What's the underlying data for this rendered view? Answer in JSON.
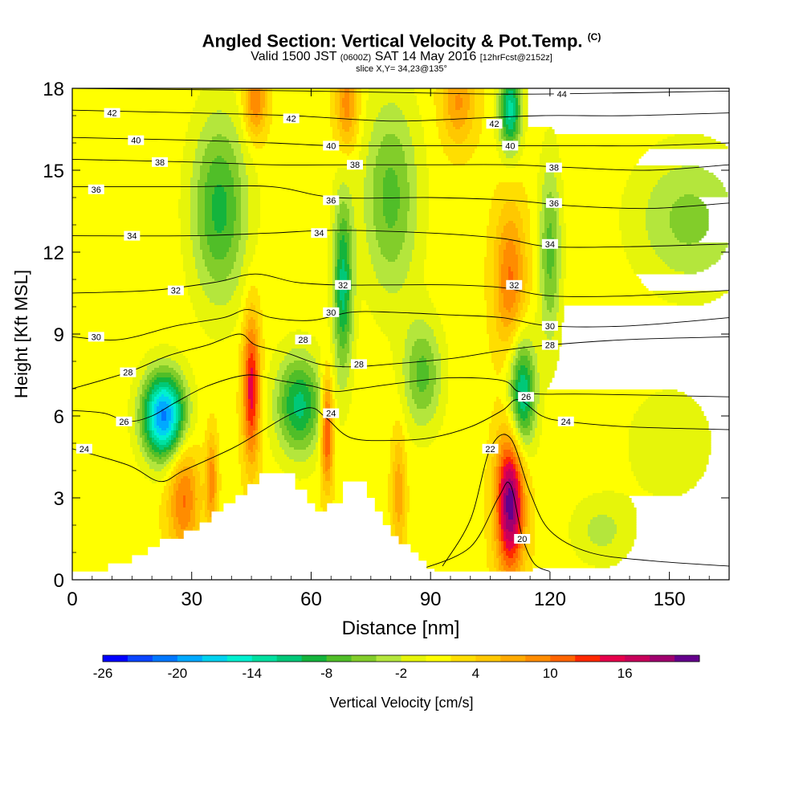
{
  "title": {
    "main": "Angled Section: Vertical Velocity & Pot.Temp.",
    "copyright": "(C)",
    "valid_prefix": "Valid 1500 JST",
    "valid_utc": "(0600Z)",
    "valid_date": "SAT 14 May 2016",
    "forecast": "[12hrFcst@2152z]",
    "slice": "slice X,Y= 34,23@135°"
  },
  "chart_data": {
    "type": "heatmap",
    "xlabel": "Distance [nm]",
    "ylabel": "Height [Kft MSL]",
    "xlim": [
      0,
      165
    ],
    "ylim": [
      0,
      18
    ],
    "x_ticks": [
      0,
      30,
      60,
      90,
      120,
      150
    ],
    "y_ticks": [
      0,
      3,
      6,
      9,
      12,
      15,
      18
    ],
    "colorbar": {
      "label": "Vertical Velocity [cm/s]",
      "tick_labels": [
        "-26",
        "-20",
        "-14",
        "-8",
        "-2",
        "4",
        "10",
        "16"
      ],
      "tick_values": [
        -26,
        -20,
        -14,
        -8,
        -2,
        4,
        10,
        16
      ],
      "levels": [
        -26,
        -24,
        -22,
        -20,
        -18,
        -16,
        -14,
        -12,
        -10,
        -8,
        -6,
        -4,
        -2,
        0,
        2,
        4,
        6,
        8,
        10,
        12,
        14,
        16,
        18,
        20
      ],
      "colors": [
        "#0000ff",
        "#0a45ff",
        "#0077ff",
        "#00a9ff",
        "#00d2f0",
        "#00f0d0",
        "#00e0a0",
        "#00c878",
        "#14b43c",
        "#50be28",
        "#82cd2a",
        "#b4e63c",
        "#e6f50a",
        "#ffff00",
        "#ffde00",
        "#ffc800",
        "#ffaa00",
        "#ff8c00",
        "#ff6400",
        "#ff2800",
        "#e6004b",
        "#c8005a",
        "#a0006e",
        "#64008c"
      ]
    },
    "terrain": [
      [
        0,
        0.3
      ],
      [
        8,
        0.3
      ],
      [
        9,
        0.6
      ],
      [
        14,
        0.6
      ],
      [
        15,
        0.9
      ],
      [
        18,
        0.9
      ],
      [
        19,
        1.2
      ],
      [
        21,
        1.2
      ],
      [
        22,
        1.5
      ],
      [
        27,
        1.5
      ],
      [
        28,
        1.8
      ],
      [
        31,
        1.8
      ],
      [
        32,
        2.1
      ],
      [
        34,
        2.1
      ],
      [
        35,
        2.5
      ],
      [
        37,
        2.5
      ],
      [
        38,
        2.8
      ],
      [
        40,
        2.8
      ],
      [
        41,
        3.1
      ],
      [
        43,
        3.1
      ],
      [
        44,
        3.5
      ],
      [
        46,
        3.5
      ],
      [
        47,
        3.9
      ],
      [
        55,
        3.9
      ],
      [
        56,
        3.3
      ],
      [
        58,
        3.3
      ],
      [
        59,
        2.8
      ],
      [
        60,
        2.8
      ],
      [
        61,
        2.5
      ],
      [
        63,
        2.5
      ],
      [
        64,
        2.8
      ],
      [
        67,
        2.8
      ],
      [
        68,
        3.6
      ],
      [
        73,
        3.6
      ],
      [
        74,
        3.0
      ],
      [
        75,
        3.0
      ],
      [
        76,
        2.5
      ],
      [
        77,
        2.5
      ],
      [
        78,
        2.0
      ],
      [
        79,
        2.0
      ],
      [
        80,
        1.6
      ],
      [
        81,
        1.6
      ],
      [
        82,
        1.3
      ],
      [
        84,
        1.3
      ],
      [
        85,
        1.0
      ],
      [
        86,
        1.0
      ],
      [
        87,
        0.7
      ],
      [
        88,
        0.7
      ],
      [
        89,
        0.4
      ],
      [
        90,
        0.4
      ],
      [
        91,
        0.3
      ],
      [
        165,
        0.3
      ]
    ],
    "updrafts": [
      {
        "x": 45,
        "y": 7.0,
        "sx": 1.5,
        "sy": 1.9,
        "v": 14
      },
      {
        "x": 64,
        "y": 5.5,
        "sx": 1.1,
        "sy": 1.4,
        "v": 13
      },
      {
        "x": 110,
        "y": 2.8,
        "sx": 2.5,
        "sy": 1.8,
        "v": 20
      },
      {
        "x": 110,
        "y": 11.0,
        "sx": 2.8,
        "sy": 1.9,
        "v": 9
      },
      {
        "x": 28,
        "y": 3.0,
        "sx": 2.8,
        "sy": 1.5,
        "v": 9
      },
      {
        "x": 35,
        "y": 3.6,
        "sx": 1.0,
        "sy": 1.2,
        "v": 8
      },
      {
        "x": 46,
        "y": 17.6,
        "sx": 2.0,
        "sy": 1.0,
        "v": 9
      },
      {
        "x": 69,
        "y": 17.4,
        "sx": 2.0,
        "sy": 1.2,
        "v": 8
      },
      {
        "x": 97,
        "y": 17.5,
        "sx": 3.0,
        "sy": 1.1,
        "v": 7
      },
      {
        "x": 82,
        "y": 3.2,
        "sx": 1.2,
        "sy": 1.6,
        "v": 6
      }
    ],
    "downdrafts": [
      {
        "x": 23,
        "y": 6.0,
        "sx": 3.8,
        "sy": 1.1,
        "v": -22
      },
      {
        "x": 113,
        "y": 6.8,
        "sx": 2.4,
        "sy": 1.5,
        "v": -14
      },
      {
        "x": 57,
        "y": 6.4,
        "sx": 4.2,
        "sy": 1.3,
        "v": -12
      },
      {
        "x": 68,
        "y": 10.8,
        "sx": 1.8,
        "sy": 2.3,
        "v": -12
      },
      {
        "x": 37,
        "y": 13.6,
        "sx": 5.0,
        "sy": 2.4,
        "v": -10
      },
      {
        "x": 110,
        "y": 17.2,
        "sx": 2.0,
        "sy": 1.1,
        "v": -14
      },
      {
        "x": 88,
        "y": 7.5,
        "sx": 3.5,
        "sy": 1.4,
        "v": -8
      },
      {
        "x": 80,
        "y": 14.0,
        "sx": 5.0,
        "sy": 2.6,
        "v": -8
      },
      {
        "x": 120,
        "y": 12.0,
        "sx": 2.0,
        "sy": 2.4,
        "v": -8
      },
      {
        "x": 155,
        "y": 13.2,
        "sx": 10.0,
        "sy": 1.8,
        "v": -6
      },
      {
        "x": 133,
        "y": 1.8,
        "sx": 5.5,
        "sy": 0.9,
        "v": -4
      },
      {
        "x": 150,
        "y": 5.0,
        "sx": 8.0,
        "sy": 1.5,
        "v": -3
      }
    ],
    "isentropes": [
      {
        "label": "20",
        "label_at": [
          113,
          1.5
        ],
        "points": [
          [
            88,
            0.4
          ],
          [
            100,
            1.2
          ],
          [
            107,
            3.0
          ],
          [
            110,
            3.5
          ],
          [
            113,
            1.6
          ],
          [
            116,
            0.6
          ],
          [
            120,
            0.3
          ]
        ]
      },
      {
        "label": "22",
        "label_at": [
          105,
          4.8
        ],
        "points": [
          [
            93,
            0.5
          ],
          [
            100,
            2.2
          ],
          [
            105,
            4.8
          ],
          [
            110,
            5.2
          ],
          [
            115,
            3.2
          ],
          [
            120,
            1.8
          ],
          [
            130,
            1.0
          ],
          [
            145,
            0.7
          ],
          [
            165,
            0.5
          ]
        ]
      },
      {
        "label": "24",
        "label_at": [
          3,
          4.8
        ],
        "points": [
          [
            0,
            4.8
          ],
          [
            14,
            4.2
          ],
          [
            22,
            3.6
          ],
          [
            28,
            4.0
          ],
          [
            40,
            4.8
          ],
          [
            46,
            5.3
          ],
          [
            54,
            6.0
          ],
          [
            60,
            6.3
          ],
          [
            64,
            5.9
          ],
          [
            70,
            5.2
          ],
          [
            80,
            5.1
          ],
          [
            90,
            5.2
          ],
          [
            100,
            5.6
          ],
          [
            108,
            6.2
          ],
          [
            112,
            6.6
          ],
          [
            118,
            6.0
          ],
          [
            124,
            5.8
          ],
          [
            140,
            5.6
          ],
          [
            165,
            5.5
          ]
        ]
      },
      {
        "label": "26",
        "label_at": [
          13,
          5.8
        ],
        "points": [
          [
            0,
            6.2
          ],
          [
            8,
            6.1
          ],
          [
            14,
            5.8
          ],
          [
            20,
            6.0
          ],
          [
            26,
            6.5
          ],
          [
            34,
            7.1
          ],
          [
            44,
            7.5
          ],
          [
            52,
            7.3
          ],
          [
            60,
            7.1
          ],
          [
            66,
            6.9
          ],
          [
            72,
            7.0
          ],
          [
            82,
            7.2
          ],
          [
            95,
            7.4
          ],
          [
            108,
            7.3
          ],
          [
            112,
            6.9
          ],
          [
            118,
            6.8
          ],
          [
            130,
            6.8
          ],
          [
            165,
            6.7
          ]
        ]
      },
      {
        "label": "28",
        "label_at": [
          14,
          7.6
        ],
        "points": [
          [
            0,
            7.0
          ],
          [
            14,
            7.6
          ],
          [
            24,
            8.2
          ],
          [
            34,
            8.6
          ],
          [
            42,
            9.0
          ],
          [
            46,
            8.6
          ],
          [
            54,
            8.3
          ],
          [
            62,
            7.9
          ],
          [
            70,
            7.8
          ],
          [
            80,
            7.9
          ],
          [
            95,
            8.1
          ],
          [
            108,
            8.4
          ],
          [
            120,
            8.6
          ],
          [
            140,
            8.8
          ],
          [
            165,
            8.9
          ]
        ]
      },
      {
        "label": "30",
        "label_at": [
          6,
          8.9
        ],
        "points": [
          [
            0,
            8.9
          ],
          [
            12,
            8.8
          ],
          [
            26,
            9.3
          ],
          [
            38,
            9.6
          ],
          [
            44,
            9.9
          ],
          [
            50,
            9.6
          ],
          [
            60,
            9.5
          ],
          [
            70,
            9.8
          ],
          [
            80,
            9.8
          ],
          [
            95,
            9.7
          ],
          [
            108,
            9.6
          ],
          [
            120,
            9.3
          ],
          [
            140,
            9.3
          ],
          [
            165,
            9.6
          ]
        ]
      },
      {
        "label": "32",
        "label_at": [
          26,
          10.6
        ],
        "points": [
          [
            0,
            10.5
          ],
          [
            20,
            10.6
          ],
          [
            36,
            10.9
          ],
          [
            46,
            11.2
          ],
          [
            56,
            10.9
          ],
          [
            66,
            10.8
          ],
          [
            80,
            10.8
          ],
          [
            95,
            10.8
          ],
          [
            108,
            10.7
          ],
          [
            120,
            10.4
          ],
          [
            140,
            10.4
          ],
          [
            165,
            10.6
          ]
        ]
      },
      {
        "label": "34",
        "label_at": [
          15,
          12.6
        ],
        "points": [
          [
            0,
            12.6
          ],
          [
            30,
            12.6
          ],
          [
            50,
            12.7
          ],
          [
            66,
            12.8
          ],
          [
            90,
            12.7
          ],
          [
            108,
            12.5
          ],
          [
            120,
            12.2
          ],
          [
            140,
            12.2
          ],
          [
            165,
            12.3
          ]
        ]
      },
      {
        "label": "36",
        "label_at": [
          6,
          14.3
        ],
        "points": [
          [
            0,
            14.4
          ],
          [
            30,
            14.4
          ],
          [
            50,
            14.4
          ],
          [
            66,
            14.0
          ],
          [
            90,
            14.0
          ],
          [
            110,
            13.9
          ],
          [
            125,
            13.7
          ],
          [
            145,
            13.6
          ],
          [
            165,
            13.8
          ]
        ]
      },
      {
        "label": "38",
        "label_at": [
          22,
          15.3
        ],
        "points": [
          [
            0,
            15.4
          ],
          [
            30,
            15.3
          ],
          [
            50,
            15.2
          ],
          [
            70,
            15.2
          ],
          [
            90,
            15.2
          ],
          [
            110,
            15.2
          ],
          [
            125,
            15.1
          ],
          [
            145,
            15.0
          ],
          [
            165,
            15.2
          ]
        ]
      },
      {
        "label": "40",
        "label_at": [
          16,
          16.1
        ],
        "points": [
          [
            0,
            16.2
          ],
          [
            30,
            16.1
          ],
          [
            50,
            16.0
          ],
          [
            66,
            15.9
          ],
          [
            90,
            15.9
          ],
          [
            110,
            15.9
          ],
          [
            125,
            15.9
          ],
          [
            145,
            15.9
          ],
          [
            165,
            16.0
          ]
        ]
      },
      {
        "label": "42",
        "label_at": [
          10,
          17.1
        ],
        "points": [
          [
            0,
            17.2
          ],
          [
            30,
            17.1
          ],
          [
            55,
            17.0
          ],
          [
            80,
            16.8
          ],
          [
            100,
            16.9
          ],
          [
            118,
            17.0
          ],
          [
            140,
            17.0
          ],
          [
            165,
            17.1
          ]
        ]
      },
      {
        "label": "44",
        "label_at": [
          123,
          17.8
        ],
        "points": [
          [
            0,
            18.0
          ],
          [
            60,
            17.9
          ],
          [
            100,
            17.8
          ],
          [
            123,
            17.8
          ],
          [
            165,
            17.9
          ]
        ]
      }
    ],
    "extra_labels": [
      {
        "text": "42",
        "at": [
          55,
          16.9
        ]
      },
      {
        "text": "42",
        "at": [
          106,
          16.7
        ]
      },
      {
        "text": "40",
        "at": [
          65,
          15.9
        ]
      },
      {
        "text": "40",
        "at": [
          110,
          15.9
        ]
      },
      {
        "text": "38",
        "at": [
          71,
          15.2
        ]
      },
      {
        "text": "38",
        "at": [
          121,
          15.1
        ]
      },
      {
        "text": "36",
        "at": [
          65,
          13.9
        ]
      },
      {
        "text": "36",
        "at": [
          121,
          13.8
        ]
      },
      {
        "text": "34",
        "at": [
          62,
          12.7
        ]
      },
      {
        "text": "34",
        "at": [
          120,
          12.3
        ]
      },
      {
        "text": "32",
        "at": [
          68,
          10.8
        ]
      },
      {
        "text": "32",
        "at": [
          111,
          10.8
        ]
      },
      {
        "text": "30",
        "at": [
          65,
          9.8
        ]
      },
      {
        "text": "30",
        "at": [
          120,
          9.3
        ]
      },
      {
        "text": "28",
        "at": [
          58,
          8.8
        ]
      },
      {
        "text": "28",
        "at": [
          72,
          7.9
        ]
      },
      {
        "text": "28",
        "at": [
          120,
          8.6
        ]
      },
      {
        "text": "26",
        "at": [
          114,
          6.7
        ]
      },
      {
        "text": "24",
        "at": [
          65,
          6.1
        ]
      },
      {
        "text": "24",
        "at": [
          124,
          5.8
        ]
      }
    ]
  }
}
